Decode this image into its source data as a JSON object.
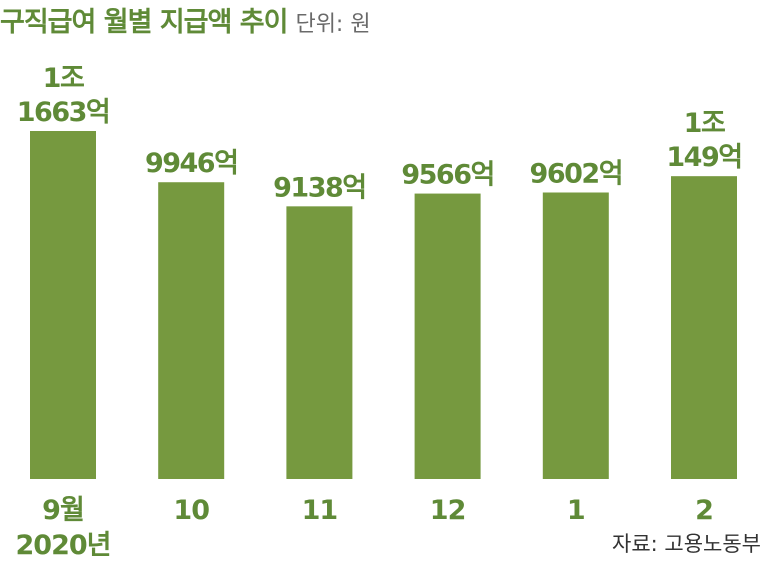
{
  "title": "구직급여 월별 지급액 추이",
  "unit": "단위: 원",
  "source": "자료: 고용노동부",
  "colors": {
    "bar": "#76993f",
    "text": "#5f8a37"
  },
  "chart_data": {
    "type": "bar",
    "categories": [
      "9월",
      "10",
      "11",
      "12",
      "1",
      "2"
    ],
    "year_label": "2020년",
    "values": [
      11663,
      9946,
      9138,
      9566,
      9602,
      10149
    ],
    "data_labels": [
      [
        "1조",
        "1663억"
      ],
      [
        "9946억"
      ],
      [
        "9138억"
      ],
      [
        "9566억"
      ],
      [
        "9602억"
      ],
      [
        "1조",
        "149억"
      ]
    ],
    "ylim": [
      0,
      11663
    ],
    "grid": false
  }
}
